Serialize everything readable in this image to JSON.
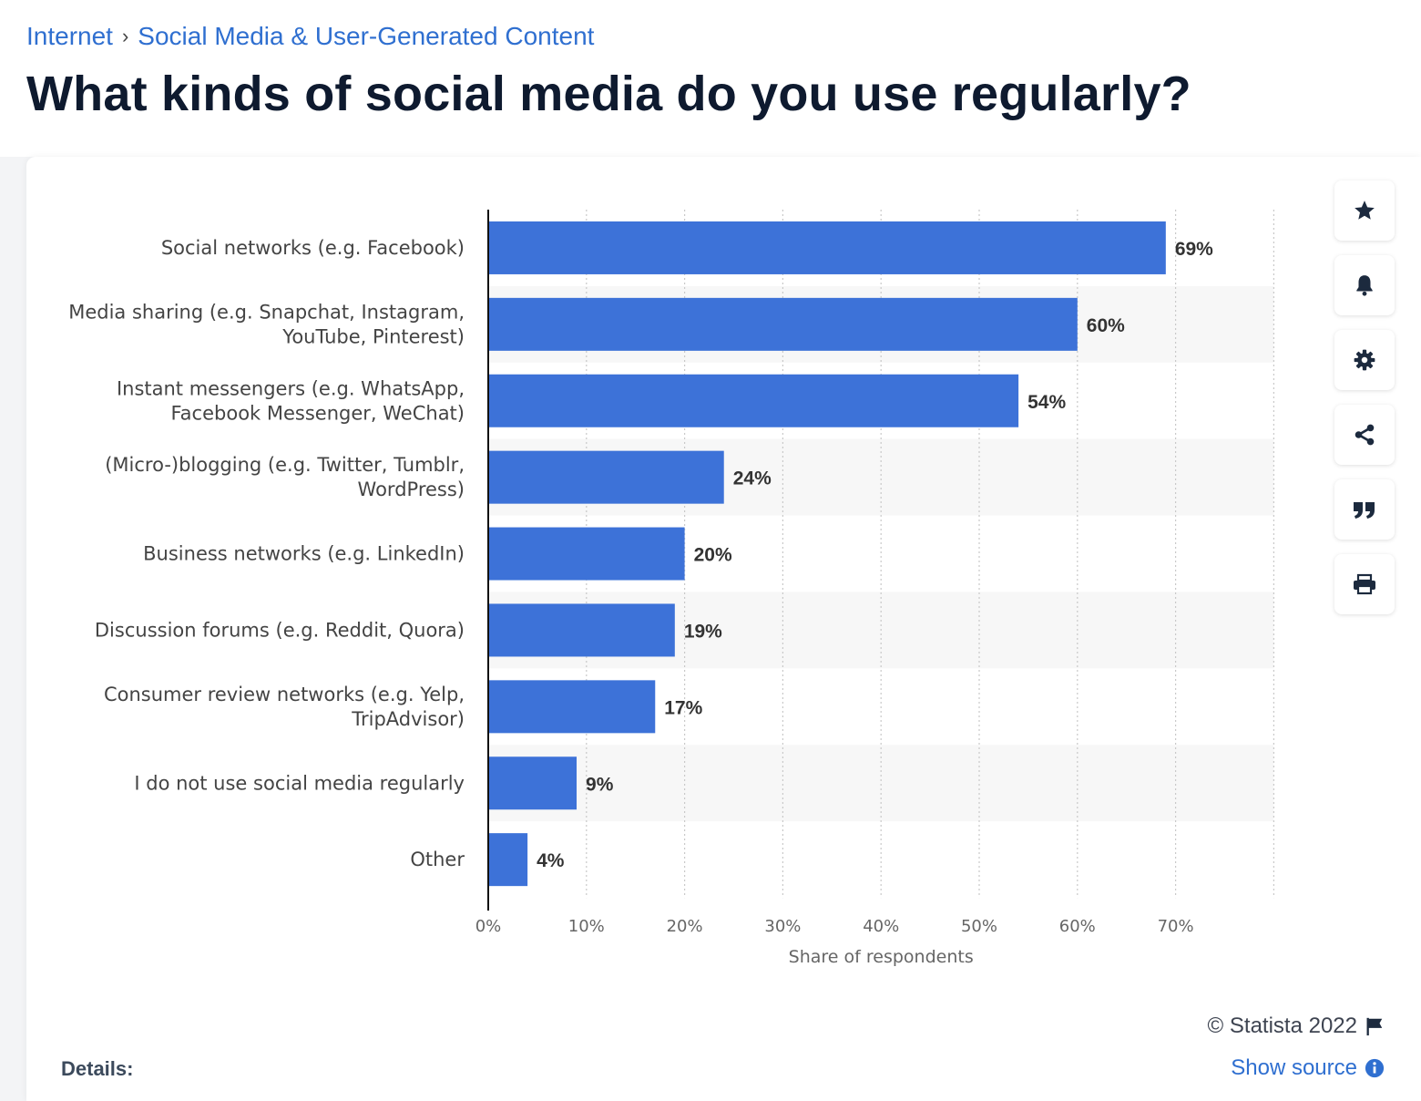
{
  "breadcrumb": {
    "items": [
      "Internet",
      "Social Media & User-Generated Content"
    ],
    "separator": "›"
  },
  "page_title": "What kinds of social media do you use regularly?",
  "toolbar": {
    "icons": [
      "star-icon",
      "bell-icon",
      "gear-icon",
      "share-icon",
      "quote-icon",
      "print-icon"
    ]
  },
  "colors": {
    "bar": "#3d72d8",
    "link": "#2f6fd0",
    "title": "#0e1a2f",
    "band": "#f7f7f7"
  },
  "chart_data": {
    "type": "bar",
    "orientation": "horizontal",
    "categories": [
      [
        "Social networks (e.g. Facebook)"
      ],
      [
        "Media sharing (e.g. Snapchat, Instagram,",
        "YouTube, Pinterest)"
      ],
      [
        "Instant messengers (e.g. WhatsApp,",
        "Facebook Messenger, WeChat)"
      ],
      [
        "(Micro-)blogging (e.g. Twitter, Tumblr,",
        "WordPress)"
      ],
      [
        "Business networks (e.g. LinkedIn)"
      ],
      [
        "Discussion forums (e.g. Reddit, Quora)"
      ],
      [
        "Consumer review networks (e.g. Yelp,",
        "TripAdvisor)"
      ],
      [
        "I do not use social media regularly"
      ],
      [
        "Other"
      ]
    ],
    "values": [
      69,
      60,
      54,
      24,
      20,
      19,
      17,
      9,
      4
    ],
    "value_labels": [
      "69%",
      "60%",
      "54%",
      "24%",
      "20%",
      "19%",
      "17%",
      "9%",
      "4%"
    ],
    "xlim": [
      0,
      80
    ],
    "xticks": [
      "0%",
      "10%",
      "20%",
      "30%",
      "40%",
      "50%",
      "60%",
      "70%"
    ],
    "xlabel": "Share of respondents",
    "ylabel": "",
    "grid": "vertical dotted",
    "legend": "none"
  },
  "footer": {
    "credit": "© Statista 2022",
    "details_label": "Details:",
    "show_source": "Show source"
  }
}
